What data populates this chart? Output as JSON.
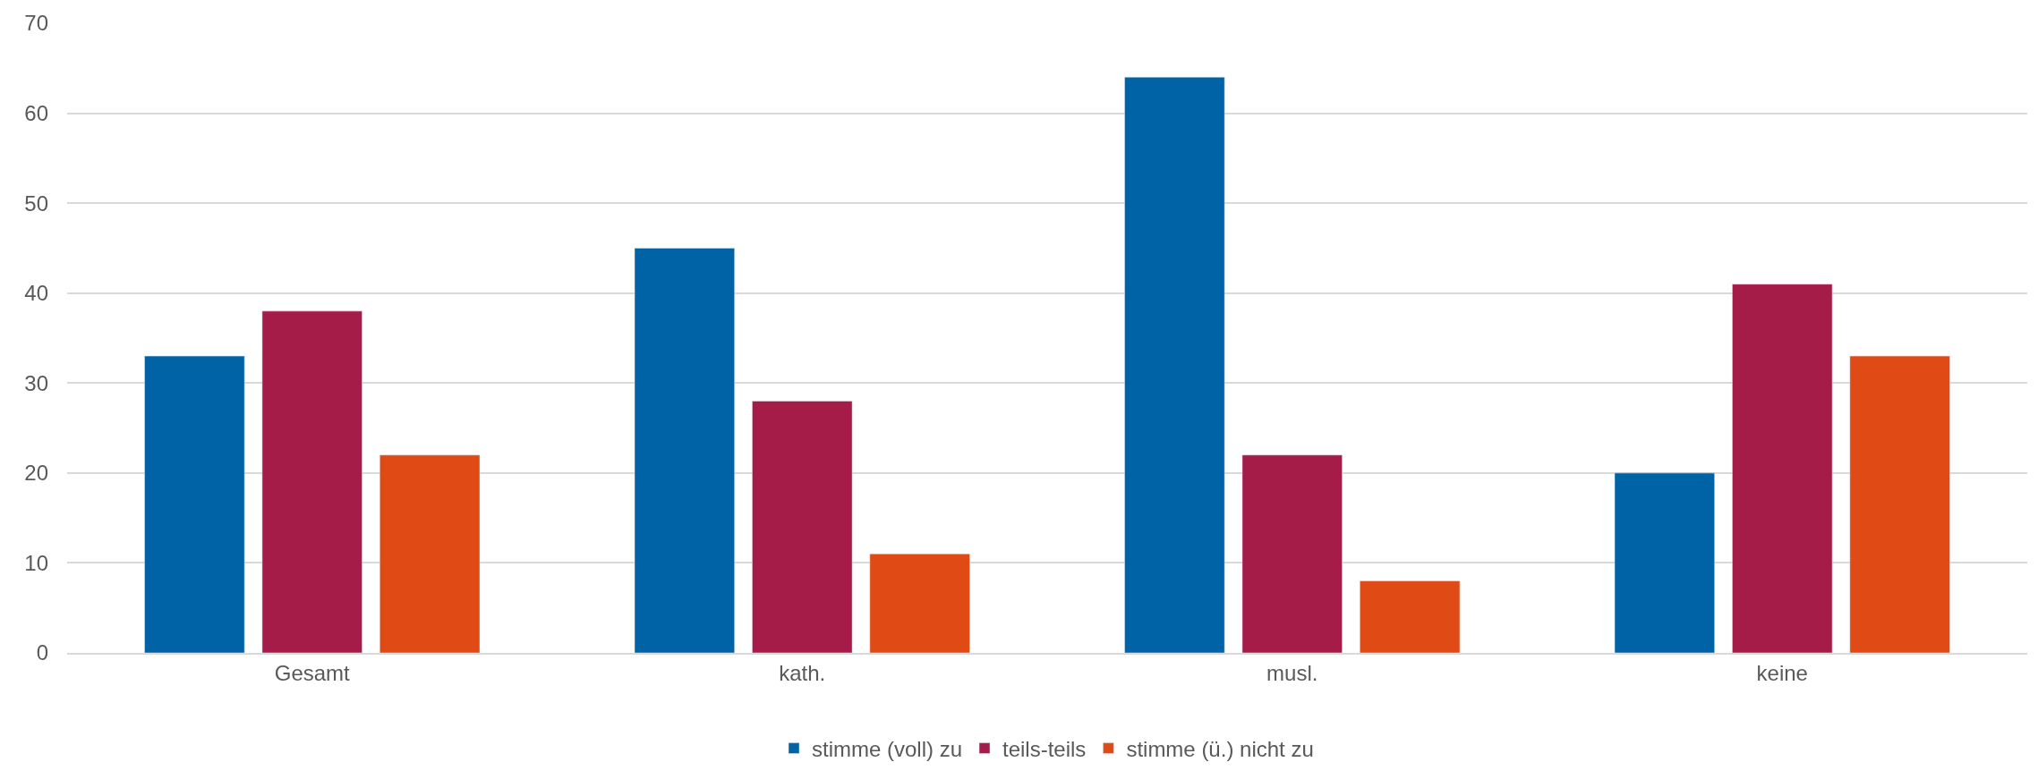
{
  "chart_data": {
    "type": "bar",
    "categories": [
      "Gesamt",
      "kath.",
      "musl.",
      "keine"
    ],
    "series": [
      {
        "name": "stimme (voll) zu",
        "color": "#0063a6",
        "values": [
          33,
          45,
          64,
          20
        ]
      },
      {
        "name": "teils-teils",
        "color": "#a61c49",
        "values": [
          38,
          28,
          22,
          41
        ]
      },
      {
        "name": "stimme (ü.) nicht zu",
        "color": "#e04a15",
        "values": [
          22,
          11,
          8,
          33
        ]
      }
    ],
    "ylim": [
      0,
      70
    ],
    "yticks": [
      0,
      10,
      20,
      30,
      40,
      50,
      60,
      70
    ],
    "grid": "y",
    "legend": "bottom"
  }
}
